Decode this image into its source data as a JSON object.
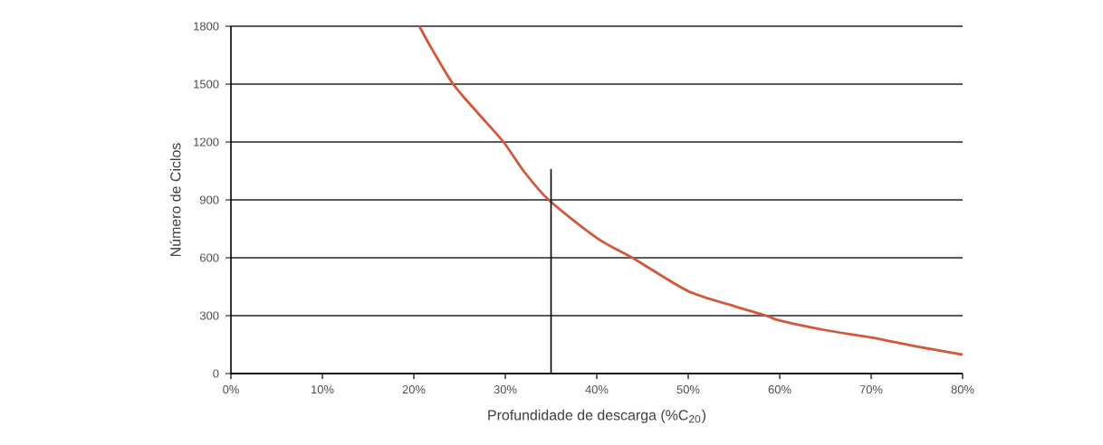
{
  "chart_data": {
    "type": "line",
    "xlabel": "Profundidade de descarga (%C$_{20}$)",
    "ylabel": "Número de Ciclos",
    "xlim": [
      0,
      80
    ],
    "ylim": [
      0,
      1800
    ],
    "xticks": [
      {
        "value": 0,
        "label": "0%"
      },
      {
        "value": 10,
        "label": "10%"
      },
      {
        "value": 20,
        "label": "20%"
      },
      {
        "value": 30,
        "label": "30%"
      },
      {
        "value": 40,
        "label": "40%"
      },
      {
        "value": 50,
        "label": "50%"
      },
      {
        "value": 60,
        "label": "60%"
      },
      {
        "value": 70,
        "label": "70%"
      },
      {
        "value": 80,
        "label": "80%"
      }
    ],
    "yticks": [
      0,
      300,
      600,
      900,
      1200,
      1500,
      1800
    ],
    "grid": "y",
    "marker": "none",
    "line_style": "solid",
    "series": [
      {
        "color": "#d2583c",
        "x": [
          20.6,
          22,
          24.3,
          27,
          29.8,
          32,
          34.75,
          40,
          43.9,
          50,
          55,
          58.5,
          60,
          65,
          70,
          75,
          80
        ],
        "values": [
          1800,
          1680,
          1500,
          1350,
          1200,
          1050,
          900,
          703,
          600,
          427,
          350,
          300,
          275,
          225,
          187,
          140,
          98
        ]
      },
      {
        "color": "#000000",
        "x": [
          35,
          35
        ],
        "values": [
          0,
          1060
        ]
      }
    ]
  }
}
